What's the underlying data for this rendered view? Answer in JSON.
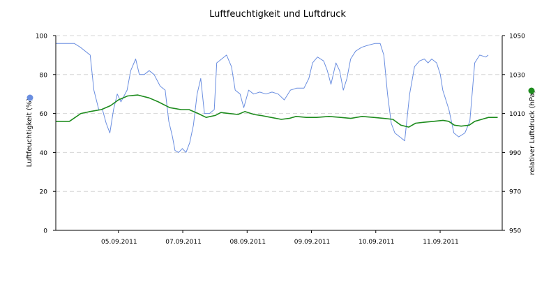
{
  "chart_data": {
    "type": "line",
    "title": "Luftfeuchtigkeit und Luftdruck",
    "ylabel_left": "Luftfeuchtigkeit (%)",
    "ylabel_right": "relativer Luftdruck (hPa)",
    "ylim_left": [
      0,
      100
    ],
    "ylim_right": [
      950,
      1050
    ],
    "yticks_left": [
      "0",
      "20",
      "40",
      "60",
      "80",
      "100"
    ],
    "yticks_right": [
      "950",
      "970",
      "990",
      "1010",
      "1030",
      "1050"
    ],
    "x_tick_labels": [
      "05.09.2011",
      "07.09.2011",
      "08.09.2011",
      "09.09.2011",
      "10.09.2011",
      "11.09.2011"
    ],
    "grid": true,
    "colors": {
      "humidity": "#6a8ee0",
      "pressure": "#1e8c1e",
      "axis": "#000000",
      "grid": "#d6d6d6"
    },
    "series": [
      {
        "axis": "left",
        "values": [
          [
            0,
            96
          ],
          [
            1.5,
            96
          ],
          [
            2,
            94
          ],
          [
            2.8,
            90
          ],
          [
            3.1,
            72
          ],
          [
            3.5,
            62
          ],
          [
            3.8,
            62
          ],
          [
            4.1,
            55
          ],
          [
            4.4,
            50
          ],
          [
            4.7,
            62
          ],
          [
            5.0,
            70
          ],
          [
            5.3,
            66
          ],
          [
            5.8,
            72
          ],
          [
            6.1,
            82
          ],
          [
            6.5,
            88
          ],
          [
            6.8,
            80
          ],
          [
            7.2,
            80
          ],
          [
            7.6,
            82
          ],
          [
            8.0,
            80
          ],
          [
            8.5,
            74
          ],
          [
            8.9,
            72
          ],
          [
            9.2,
            56
          ],
          [
            9.5,
            48
          ],
          [
            9.7,
            41
          ],
          [
            10.0,
            40
          ],
          [
            10.3,
            42
          ],
          [
            10.6,
            40
          ],
          [
            10.9,
            45
          ],
          [
            11.2,
            54
          ],
          [
            11.5,
            70
          ],
          [
            11.8,
            78
          ],
          [
            12.1,
            60
          ],
          [
            12.5,
            60
          ],
          [
            12.9,
            62
          ],
          [
            13.1,
            86
          ],
          [
            13.5,
            88
          ],
          [
            13.9,
            90
          ],
          [
            14.3,
            84
          ],
          [
            14.6,
            72
          ],
          [
            15.0,
            70
          ],
          [
            15.3,
            63
          ],
          [
            15.7,
            72
          ],
          [
            16.1,
            70
          ],
          [
            16.6,
            71
          ],
          [
            17.1,
            70
          ],
          [
            17.6,
            71
          ],
          [
            18.1,
            70
          ],
          [
            18.6,
            67
          ],
          [
            19.1,
            72
          ],
          [
            19.6,
            73
          ],
          [
            20.2,
            73
          ],
          [
            20.6,
            78
          ],
          [
            20.9,
            86
          ],
          [
            21.3,
            89
          ],
          [
            21.8,
            87
          ],
          [
            22.1,
            82
          ],
          [
            22.4,
            75
          ],
          [
            22.8,
            86
          ],
          [
            23.1,
            82
          ],
          [
            23.4,
            72
          ],
          [
            23.7,
            78
          ],
          [
            24.0,
            88
          ],
          [
            24.4,
            92
          ],
          [
            24.9,
            94
          ],
          [
            25.4,
            95
          ],
          [
            26.0,
            96
          ],
          [
            26.4,
            96
          ],
          [
            26.7,
            90
          ],
          [
            27.0,
            70
          ],
          [
            27.3,
            55
          ],
          [
            27.6,
            50
          ],
          [
            28.0,
            48
          ],
          [
            28.4,
            46
          ],
          [
            28.8,
            70
          ],
          [
            29.2,
            84
          ],
          [
            29.6,
            87
          ],
          [
            30.0,
            88
          ],
          [
            30.3,
            86
          ],
          [
            30.6,
            88
          ],
          [
            31.0,
            86
          ],
          [
            31.3,
            80
          ],
          [
            31.5,
            72
          ],
          [
            32.0,
            62
          ],
          [
            32.4,
            50
          ],
          [
            32.8,
            48
          ],
          [
            33.3,
            50
          ],
          [
            33.7,
            56
          ],
          [
            34.1,
            86
          ],
          [
            34.5,
            90
          ],
          [
            35.0,
            89
          ],
          [
            35.2,
            90
          ]
        ]
      },
      {
        "axis": "right",
        "values": [
          [
            0,
            1006
          ],
          [
            1.2,
            1006
          ],
          [
            1.7,
            1008
          ],
          [
            2.2,
            1010
          ],
          [
            3.0,
            1011
          ],
          [
            4.0,
            1012
          ],
          [
            4.8,
            1014
          ],
          [
            5.5,
            1017
          ],
          [
            6.3,
            1019
          ],
          [
            7.2,
            1019.5
          ],
          [
            8.2,
            1018
          ],
          [
            9.0,
            1016
          ],
          [
            10.0,
            1013
          ],
          [
            11.0,
            1012
          ],
          [
            11.7,
            1012
          ],
          [
            12.5,
            1010
          ],
          [
            13.2,
            1008
          ],
          [
            14.0,
            1009
          ],
          [
            14.5,
            1010.5
          ],
          [
            15.2,
            1010
          ],
          [
            16.0,
            1009.5
          ],
          [
            16.6,
            1011
          ],
          [
            17.4,
            1009.5
          ],
          [
            18.0,
            1009
          ],
          [
            18.9,
            1008
          ],
          [
            19.8,
            1007
          ],
          [
            20.5,
            1007.5
          ],
          [
            21.1,
            1008.5
          ],
          [
            22.0,
            1008
          ],
          [
            22.9,
            1008
          ],
          [
            24.0,
            1008.5
          ],
          [
            25.0,
            1008
          ],
          [
            25.9,
            1007.5
          ],
          [
            26.9,
            1008.5
          ],
          [
            27.9,
            1008
          ],
          [
            28.8,
            1007.5
          ],
          [
            29.6,
            1007
          ],
          [
            30.3,
            1004
          ],
          [
            31.0,
            1003
          ],
          [
            31.6,
            1005
          ],
          [
            32.3,
            1005.5
          ],
          [
            33.2,
            1006
          ],
          [
            34.0,
            1006.5
          ],
          [
            34.5,
            1006
          ],
          [
            35.0,
            1004
          ],
          [
            35.6,
            1003.5
          ],
          [
            36.3,
            1004
          ],
          [
            36.8,
            1006
          ],
          [
            37.4,
            1007
          ],
          [
            38.0,
            1008
          ],
          [
            38.5,
            1008
          ],
          [
            38.8,
            1008
          ]
        ]
      }
    ]
  }
}
